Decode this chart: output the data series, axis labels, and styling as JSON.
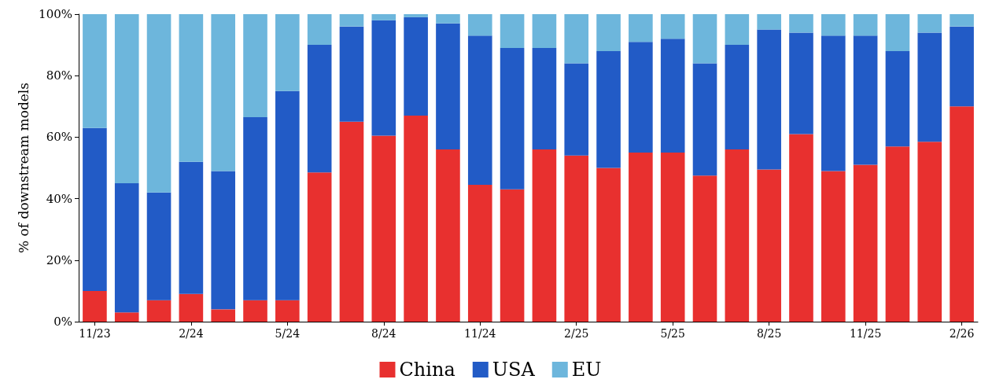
{
  "chart_data": {
    "type": "bar",
    "stacked": true,
    "ylabel": "% of downstream models",
    "categories": [
      "11/23",
      null,
      null,
      "2/24",
      null,
      null,
      "5/24",
      null,
      null,
      "8/24",
      null,
      null,
      "11/24",
      null,
      null,
      "2/25",
      null,
      null,
      "5/25",
      null,
      null,
      "8/25",
      null,
      null,
      "11/25",
      null,
      null,
      "2/26"
    ],
    "series": [
      {
        "name": "China",
        "color": "#e8302f",
        "values": [
          10,
          3,
          7,
          9,
          4,
          7,
          7,
          48.5,
          65,
          60.5,
          67,
          56,
          44.5,
          43,
          56,
          54,
          50,
          55,
          55,
          47.5,
          56,
          49.5,
          61,
          49,
          51,
          57,
          58.5,
          70
        ]
      },
      {
        "name": "USA",
        "color": "#225bc6",
        "values": [
          53,
          42,
          35,
          43,
          45,
          59.5,
          68,
          41.5,
          31,
          37.5,
          32,
          41,
          48.5,
          46,
          33,
          30,
          38,
          36,
          37,
          36.5,
          34,
          45.5,
          33,
          44,
          42,
          31,
          35.5,
          26
        ]
      },
      {
        "name": "EU",
        "color": "#6db6dc",
        "values": [
          37,
          55,
          58,
          48,
          51,
          33.5,
          25,
          10,
          4,
          2,
          1,
          3,
          7,
          11,
          11,
          16,
          12,
          9,
          8,
          16,
          10,
          5,
          6,
          7,
          7,
          12,
          6,
          4
        ]
      }
    ],
    "ylim": [
      0,
      100
    ],
    "yticks": [
      {
        "value": 0,
        "label": "0%"
      },
      {
        "value": 20,
        "label": "20%"
      },
      {
        "value": 40,
        "label": "40%"
      },
      {
        "value": 60,
        "label": "60%"
      },
      {
        "value": 80,
        "label": "80%"
      },
      {
        "value": 100,
        "label": "100%"
      }
    ],
    "grid": false,
    "legend": "bottom"
  }
}
